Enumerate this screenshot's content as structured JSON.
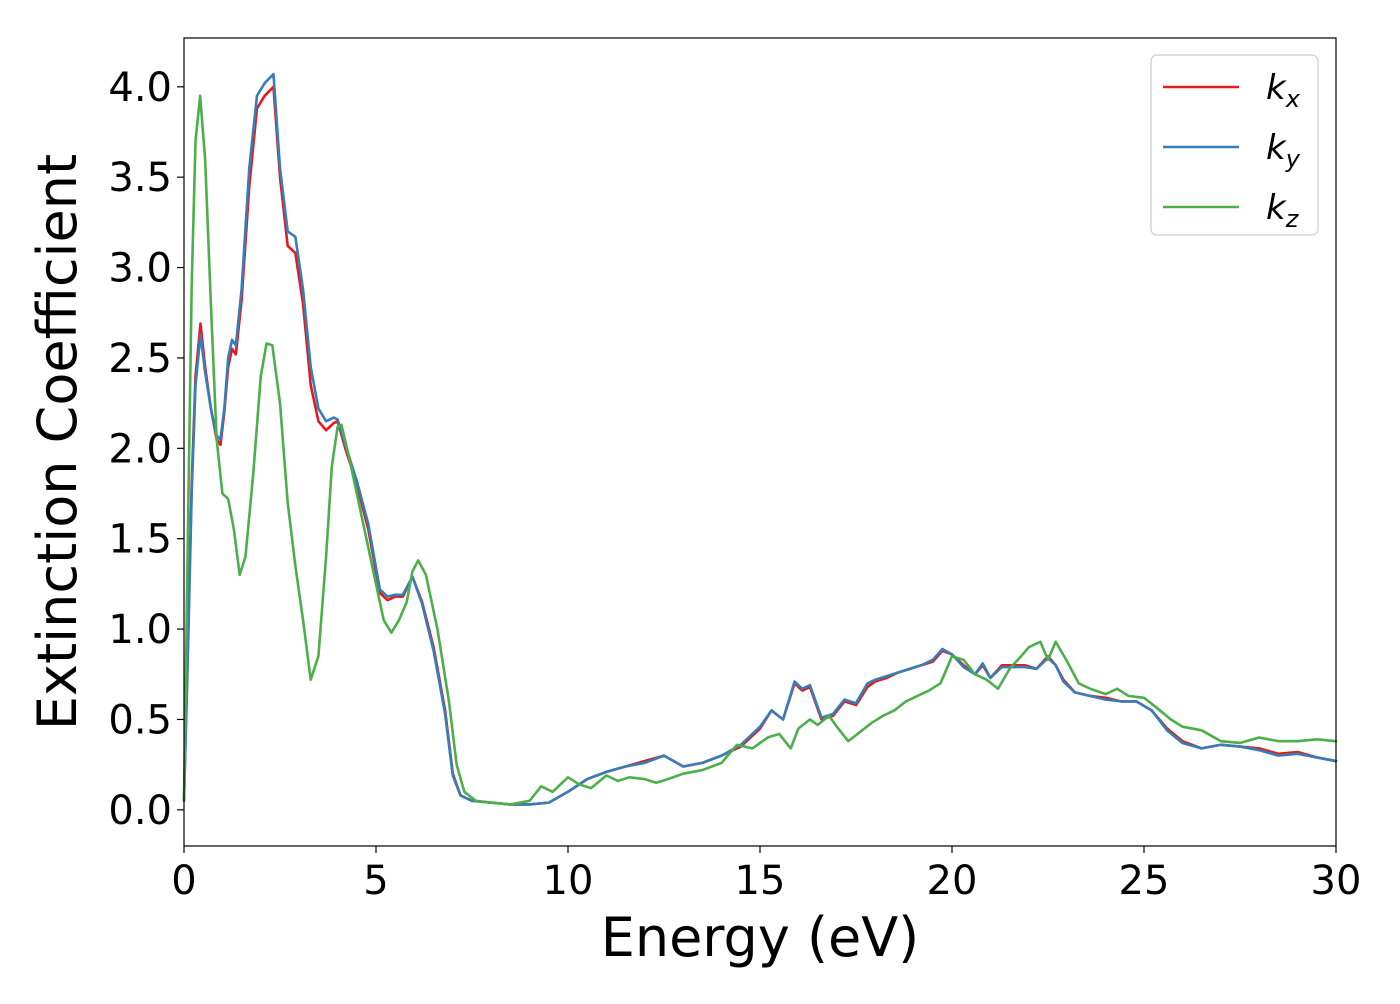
{
  "chart_data": {
    "type": "line",
    "title": "",
    "xlabel": "Energy (eV)",
    "ylabel": "Extinction Coefficient",
    "xlim": [
      0,
      30
    ],
    "ylim": [
      -0.2,
      4.27
    ],
    "x_ticks": [
      0,
      5,
      10,
      15,
      20,
      25,
      30
    ],
    "y_ticks": [
      0.0,
      0.5,
      1.0,
      1.5,
      2.0,
      2.5,
      3.0,
      3.5,
      4.0
    ],
    "x_tick_labels": [
      "0",
      "5",
      "10",
      "15",
      "20",
      "25",
      "30"
    ],
    "y_tick_labels": [
      "0.0",
      "0.5",
      "1.0",
      "1.5",
      "2.0",
      "2.5",
      "3.0",
      "3.5",
      "4.0"
    ],
    "grid": false,
    "legend_position": "top-right",
    "series": [
      {
        "name": "k_x",
        "label_main": "k",
        "label_sub": "x",
        "color": "#e41a1c",
        "x": [
          0,
          0.1,
          0.2,
          0.3,
          0.43,
          0.55,
          0.7,
          0.85,
          0.95,
          1.05,
          1.15,
          1.25,
          1.35,
          1.5,
          1.7,
          1.9,
          2.1,
          2.33,
          2.5,
          2.7,
          2.9,
          3.1,
          3.3,
          3.5,
          3.7,
          3.9,
          4.0,
          4.2,
          4.5,
          4.8,
          5.1,
          5.3,
          5.5,
          5.7,
          5.95,
          6.2,
          6.5,
          6.8,
          7.0,
          7.2,
          7.5,
          8.0,
          8.5,
          9.0,
          9.5,
          10.0,
          10.5,
          11.0,
          11.5,
          12.0,
          12.5,
          13.0,
          13.5,
          14.0,
          14.5,
          15.0,
          15.3,
          15.6,
          15.9,
          16.1,
          16.3,
          16.6,
          16.9,
          17.2,
          17.5,
          17.8,
          18.0,
          18.3,
          18.6,
          18.9,
          19.2,
          19.5,
          19.75,
          20.0,
          20.3,
          20.6,
          20.8,
          21.0,
          21.3,
          21.6,
          21.9,
          22.2,
          22.5,
          22.7,
          22.9,
          23.2,
          23.6,
          24.0,
          24.4,
          24.8,
          25.2,
          25.6,
          26.0,
          26.5,
          27.0,
          27.5,
          28.0,
          28.5,
          29.0,
          29.5,
          30.0
        ],
        "values": [
          0.05,
          0.9,
          1.8,
          2.4,
          2.69,
          2.45,
          2.22,
          2.05,
          2.02,
          2.2,
          2.45,
          2.55,
          2.52,
          2.82,
          3.45,
          3.88,
          3.95,
          4.0,
          3.5,
          3.12,
          3.08,
          2.8,
          2.35,
          2.15,
          2.1,
          2.14,
          2.15,
          2.0,
          1.8,
          1.55,
          1.2,
          1.16,
          1.18,
          1.18,
          1.29,
          1.15,
          0.9,
          0.55,
          0.2,
          0.08,
          0.05,
          0.04,
          0.03,
          0.03,
          0.04,
          0.1,
          0.17,
          0.21,
          0.24,
          0.27,
          0.3,
          0.24,
          0.26,
          0.3,
          0.35,
          0.45,
          0.55,
          0.5,
          0.7,
          0.66,
          0.68,
          0.5,
          0.52,
          0.6,
          0.58,
          0.68,
          0.71,
          0.73,
          0.76,
          0.78,
          0.8,
          0.82,
          0.88,
          0.86,
          0.8,
          0.75,
          0.8,
          0.73,
          0.8,
          0.8,
          0.8,
          0.78,
          0.85,
          0.8,
          0.72,
          0.65,
          0.63,
          0.62,
          0.6,
          0.6,
          0.55,
          0.45,
          0.38,
          0.34,
          0.36,
          0.35,
          0.34,
          0.31,
          0.32,
          0.29,
          0.27
        ]
      },
      {
        "name": "k_y",
        "label_main": "k",
        "label_sub": "y",
        "color": "#377eb8",
        "x": [
          0,
          0.1,
          0.2,
          0.3,
          0.43,
          0.55,
          0.7,
          0.85,
          0.95,
          1.05,
          1.15,
          1.25,
          1.35,
          1.5,
          1.7,
          1.9,
          2.1,
          2.33,
          2.5,
          2.7,
          2.9,
          3.1,
          3.3,
          3.5,
          3.7,
          3.9,
          4.0,
          4.2,
          4.5,
          4.8,
          5.1,
          5.3,
          5.5,
          5.7,
          5.95,
          6.2,
          6.5,
          6.8,
          7.0,
          7.2,
          7.5,
          8.0,
          8.5,
          9.0,
          9.5,
          10.0,
          10.5,
          11.0,
          11.5,
          12.0,
          12.5,
          13.0,
          13.5,
          14.0,
          14.5,
          15.0,
          15.3,
          15.6,
          15.9,
          16.1,
          16.3,
          16.6,
          16.9,
          17.2,
          17.5,
          17.8,
          18.0,
          18.3,
          18.6,
          18.9,
          19.2,
          19.5,
          19.75,
          20.0,
          20.3,
          20.6,
          20.8,
          21.0,
          21.3,
          21.6,
          21.9,
          22.2,
          22.5,
          22.7,
          22.9,
          23.2,
          23.6,
          24.0,
          24.4,
          24.8,
          25.2,
          25.6,
          26.0,
          26.5,
          27.0,
          27.5,
          28.0,
          28.5,
          29.0,
          29.5,
          30.0
        ],
        "values": [
          0.05,
          0.85,
          1.75,
          2.35,
          2.63,
          2.42,
          2.22,
          2.07,
          2.05,
          2.22,
          2.5,
          2.6,
          2.57,
          2.88,
          3.55,
          3.95,
          4.02,
          4.07,
          3.55,
          3.2,
          3.17,
          2.88,
          2.45,
          2.22,
          2.15,
          2.17,
          2.16,
          2.02,
          1.82,
          1.58,
          1.22,
          1.18,
          1.19,
          1.19,
          1.29,
          1.14,
          0.88,
          0.53,
          0.19,
          0.08,
          0.05,
          0.04,
          0.03,
          0.03,
          0.04,
          0.1,
          0.17,
          0.21,
          0.24,
          0.26,
          0.3,
          0.24,
          0.26,
          0.3,
          0.36,
          0.46,
          0.55,
          0.5,
          0.71,
          0.67,
          0.69,
          0.51,
          0.53,
          0.61,
          0.59,
          0.7,
          0.72,
          0.74,
          0.76,
          0.78,
          0.8,
          0.83,
          0.89,
          0.86,
          0.79,
          0.75,
          0.81,
          0.73,
          0.79,
          0.79,
          0.79,
          0.78,
          0.84,
          0.8,
          0.71,
          0.65,
          0.63,
          0.61,
          0.6,
          0.6,
          0.55,
          0.44,
          0.37,
          0.34,
          0.36,
          0.35,
          0.33,
          0.3,
          0.31,
          0.29,
          0.27
        ]
      },
      {
        "name": "k_z",
        "label_main": "k",
        "label_sub": "z",
        "color": "#4daf4a",
        "x": [
          0,
          0.1,
          0.2,
          0.3,
          0.42,
          0.55,
          0.7,
          0.85,
          1.0,
          1.15,
          1.3,
          1.45,
          1.6,
          1.8,
          2.0,
          2.15,
          2.3,
          2.5,
          2.7,
          2.9,
          3.1,
          3.3,
          3.5,
          3.7,
          3.85,
          4.0,
          4.1,
          4.3,
          4.6,
          4.9,
          5.2,
          5.4,
          5.6,
          5.8,
          5.95,
          6.1,
          6.3,
          6.6,
          6.9,
          7.1,
          7.3,
          7.6,
          8.0,
          8.5,
          9.0,
          9.3,
          9.6,
          10.0,
          10.3,
          10.6,
          11.0,
          11.3,
          11.6,
          12.0,
          12.3,
          12.6,
          13.0,
          13.5,
          14.0,
          14.4,
          14.8,
          15.2,
          15.5,
          15.8,
          16.0,
          16.3,
          16.5,
          16.8,
          17.0,
          17.3,
          17.6,
          17.9,
          18.2,
          18.5,
          18.8,
          19.1,
          19.4,
          19.7,
          20.0,
          20.3,
          20.6,
          20.9,
          21.2,
          21.5,
          21.8,
          22.0,
          22.3,
          22.5,
          22.7,
          23.0,
          23.3,
          23.6,
          24.0,
          24.3,
          24.6,
          25.0,
          25.3,
          25.7,
          26.0,
          26.5,
          27.0,
          27.5,
          28.0,
          28.5,
          29.0,
          29.5,
          30.0
        ],
        "values": [
          0.05,
          1.5,
          2.9,
          3.7,
          3.95,
          3.6,
          2.8,
          2.05,
          1.75,
          1.72,
          1.55,
          1.3,
          1.4,
          1.85,
          2.4,
          2.58,
          2.57,
          2.25,
          1.7,
          1.35,
          1.05,
          0.72,
          0.85,
          1.4,
          1.9,
          2.12,
          2.13,
          1.95,
          1.65,
          1.35,
          1.05,
          0.98,
          1.05,
          1.15,
          1.32,
          1.38,
          1.3,
          1.0,
          0.6,
          0.25,
          0.1,
          0.05,
          0.04,
          0.03,
          0.05,
          0.13,
          0.1,
          0.18,
          0.14,
          0.12,
          0.19,
          0.16,
          0.18,
          0.17,
          0.15,
          0.17,
          0.2,
          0.22,
          0.26,
          0.36,
          0.34,
          0.4,
          0.42,
          0.34,
          0.45,
          0.5,
          0.47,
          0.52,
          0.46,
          0.38,
          0.43,
          0.48,
          0.52,
          0.55,
          0.6,
          0.63,
          0.66,
          0.7,
          0.85,
          0.83,
          0.75,
          0.72,
          0.67,
          0.78,
          0.85,
          0.9,
          0.93,
          0.83,
          0.93,
          0.82,
          0.7,
          0.67,
          0.64,
          0.67,
          0.63,
          0.62,
          0.57,
          0.5,
          0.46,
          0.44,
          0.38,
          0.37,
          0.4,
          0.38,
          0.38,
          0.39,
          0.38
        ]
      }
    ]
  }
}
